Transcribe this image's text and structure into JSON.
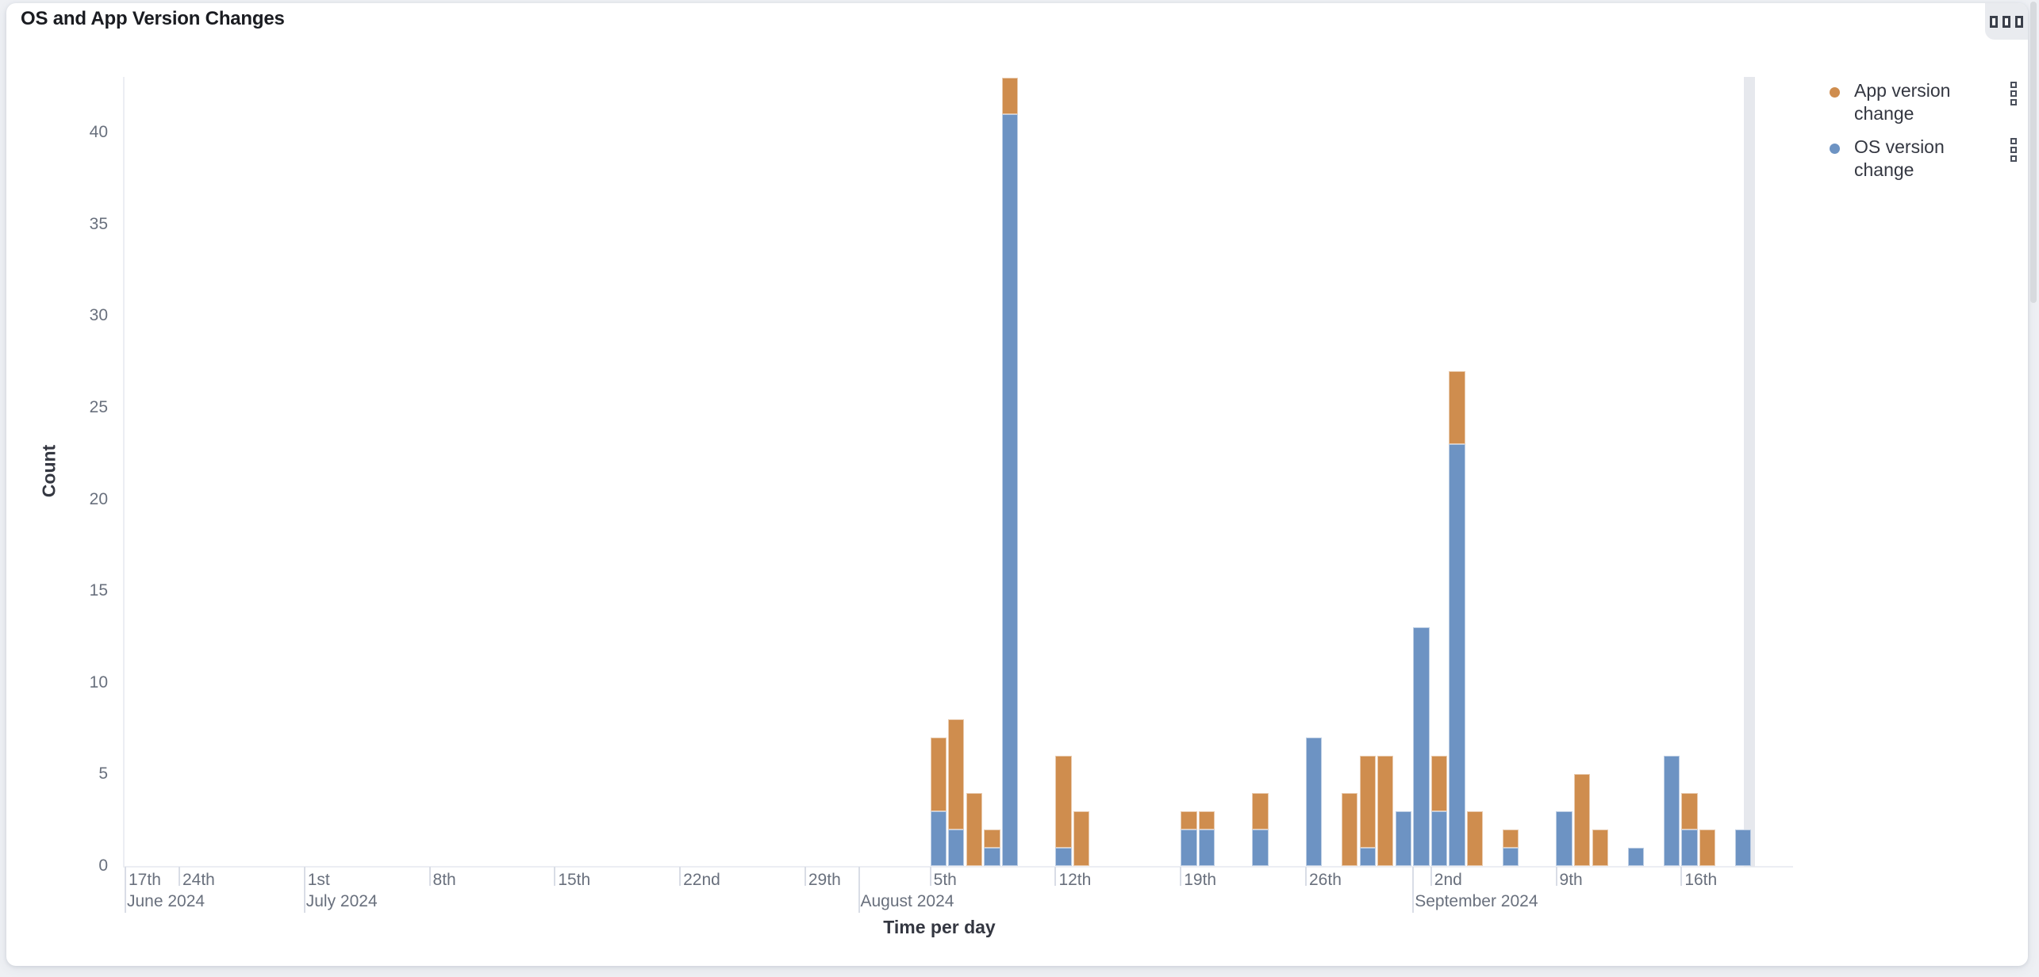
{
  "page": {
    "background_color": "#eef0f4"
  },
  "panel": {
    "title": "OS and App Version Changes",
    "menu_icon": "panel-options-squares-icon"
  },
  "legend": {
    "position": "right",
    "items": [
      {
        "label": "App version change",
        "color": "#CF8D4E",
        "action_icon": "legend-options-squares-icon"
      },
      {
        "label": "OS version change",
        "color": "#6D93C3",
        "action_icon": "legend-options-squares-icon"
      }
    ]
  },
  "chart_data": {
    "type": "bar",
    "stacked": true,
    "title": "OS and App Version Changes",
    "xlabel": "Time per day",
    "ylabel": "Count",
    "ylim": [
      0,
      43
    ],
    "y_ticks": [
      0,
      5,
      10,
      15,
      20,
      25,
      30,
      35,
      40
    ],
    "grid": false,
    "legend_position": "right",
    "x_unit": "day",
    "x_domain_start": "2024-06-20",
    "x_domain_end": "2024-09-20",
    "categories": [
      "2024-08-05",
      "2024-08-06",
      "2024-08-07",
      "2024-08-08",
      "2024-08-09",
      "2024-08-12",
      "2024-08-13",
      "2024-08-19",
      "2024-08-20",
      "2024-08-23",
      "2024-08-26",
      "2024-08-28",
      "2024-08-29",
      "2024-08-30",
      "2024-08-31",
      "2024-09-01",
      "2024-09-02",
      "2024-09-03",
      "2024-09-04",
      "2024-09-06",
      "2024-09-09",
      "2024-09-10",
      "2024-09-11",
      "2024-09-13",
      "2024-09-15",
      "2024-09-16",
      "2024-09-17",
      "2024-09-19"
    ],
    "series": [
      {
        "name": "App version change",
        "color": "#CF8D4E",
        "stack_order": "top",
        "values": [
          4,
          6,
          4,
          1,
          2,
          5,
          3,
          1,
          1,
          2,
          0,
          4,
          5,
          6,
          0,
          0,
          3,
          4,
          3,
          1,
          0,
          5,
          2,
          0,
          0,
          2,
          2,
          0
        ]
      },
      {
        "name": "OS version change",
        "color": "#6D93C3",
        "stack_order": "bottom",
        "values": [
          3,
          2,
          0,
          1,
          41,
          1,
          0,
          2,
          2,
          2,
          7,
          0,
          1,
          0,
          3,
          13,
          3,
          23,
          0,
          1,
          3,
          0,
          0,
          1,
          6,
          2,
          0,
          2
        ]
      }
    ],
    "x_ticks": [
      {
        "date": "2024-06-17",
        "label": "17th",
        "month_label": "June 2024",
        "month_tick": true
      },
      {
        "date": "2024-06-24",
        "label": "24th"
      },
      {
        "date": "2024-07-01",
        "label": "1st",
        "month_label": "July 2024",
        "month_tick": true
      },
      {
        "date": "2024-07-08",
        "label": "8th"
      },
      {
        "date": "2024-07-15",
        "label": "15th"
      },
      {
        "date": "2024-07-22",
        "label": "22nd"
      },
      {
        "date": "2024-07-29",
        "label": "29th"
      },
      {
        "date": "2024-08-01",
        "label": "",
        "month_label": "August 2024",
        "month_tick": true
      },
      {
        "date": "2024-08-05",
        "label": "5th"
      },
      {
        "date": "2024-08-12",
        "label": "12th"
      },
      {
        "date": "2024-08-19",
        "label": "19th"
      },
      {
        "date": "2024-08-26",
        "label": "26th"
      },
      {
        "date": "2024-09-01",
        "label": "",
        "month_label": "September 2024",
        "month_tick": true
      },
      {
        "date": "2024-09-02",
        "label": "2nd"
      },
      {
        "date": "2024-09-09",
        "label": "9th"
      },
      {
        "date": "2024-09-16",
        "label": "16th"
      }
    ],
    "endzone_partial_bucket": true
  }
}
